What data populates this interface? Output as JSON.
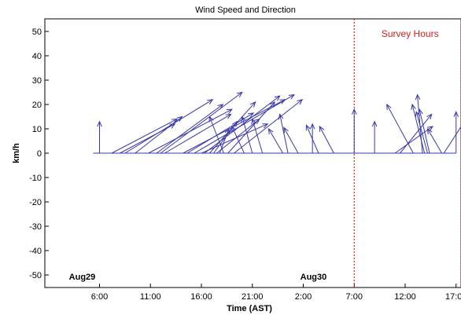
{
  "chart_data": {
    "type": "quiver",
    "title": "Wind Speed and Direction",
    "xlabel": "Time (AST)",
    "ylabel": "km/h",
    "ylim": [
      -55,
      55
    ],
    "yticks": [
      -50,
      -40,
      -30,
      -20,
      -10,
      0,
      10,
      20,
      30,
      40,
      50
    ],
    "xlim": [
      0,
      36
    ],
    "xticks": [
      {
        "hours": 6,
        "label": "6:00"
      },
      {
        "hours": 11,
        "label": "11:00"
      },
      {
        "hours": 16,
        "label": "16:00"
      },
      {
        "hours": 21,
        "label": "21:00"
      },
      {
        "hours": 26,
        "label": "2:00"
      },
      {
        "hours": 31,
        "label": "7:00"
      },
      {
        "hours": 36,
        "label": "12:00"
      },
      {
        "hours": 41,
        "label": "17:00"
      }
    ],
    "day_labels": [
      {
        "hours": 4.3,
        "label": "Aug29"
      },
      {
        "hours": 27,
        "label": "Aug30"
      }
    ],
    "annotation": {
      "label": "Survey Hours",
      "start_hours": 31,
      "end_hours": 41.5
    },
    "vectors": [
      {
        "t": 6.0,
        "u": 0.0,
        "v": 13.0
      },
      {
        "t": 7.2,
        "u": 6.4,
        "v": 14.0
      },
      {
        "t": 8.0,
        "u": 5.4,
        "v": 12.0
      },
      {
        "t": 8.5,
        "u": 8.6,
        "v": 22.0
      },
      {
        "t": 9.5,
        "u": 4.6,
        "v": 15.0
      },
      {
        "t": 10.8,
        "u": 8.2,
        "v": 18.0
      },
      {
        "t": 11.6,
        "u": 6.5,
        "v": 20.0
      },
      {
        "t": 12.0,
        "u": 8.0,
        "v": 25.0
      },
      {
        "t": 12.4,
        "u": 6.5,
        "v": 16.0
      },
      {
        "t": 14.2,
        "u": 10.0,
        "v": 22.0
      },
      {
        "t": 14.6,
        "u": 6.5,
        "v": 16.5
      },
      {
        "t": 15.3,
        "u": 9.8,
        "v": 24.0
      },
      {
        "t": 16.0,
        "u": 6.5,
        "v": 12.0
      },
      {
        "t": 16.3,
        "u": 7.4,
        "v": 23.5
      },
      {
        "t": 16.8,
        "u": 4.5,
        "v": 21.0
      },
      {
        "t": 17.2,
        "u": 2.3,
        "v": 13.0
      },
      {
        "t": 17.5,
        "u": 4.2,
        "v": 14.0
      },
      {
        "t": 17.8,
        "u": 0.9,
        "v": 10.0
      },
      {
        "t": 18.2,
        "u": -1.4,
        "v": 15.0
      },
      {
        "t": 18.6,
        "u": 4.6,
        "v": 21.0
      },
      {
        "t": 19.2,
        "u": 6.7,
        "v": 22.0
      },
      {
        "t": 20.2,
        "u": -1.2,
        "v": 11.0
      },
      {
        "t": 21.0,
        "u": -1.0,
        "v": 15.0
      },
      {
        "t": 22.0,
        "u": -1.0,
        "v": 14.0
      },
      {
        "t": 24.0,
        "u": -1.4,
        "v": 10.0
      },
      {
        "t": 24.5,
        "u": -0.8,
        "v": 16.0
      },
      {
        "t": 25.5,
        "u": -1.4,
        "v": 10.5
      },
      {
        "t": 26.9,
        "u": 0.0,
        "v": 12.0
      },
      {
        "t": 27.5,
        "u": -1.2,
        "v": 11.5
      },
      {
        "t": 29.0,
        "u": -1.4,
        "v": 11.0
      },
      {
        "t": 31.0,
        "u": 0.0,
        "v": 18.0
      },
      {
        "t": 33.0,
        "u": 0.0,
        "v": 13.0
      },
      {
        "t": 35.0,
        "u": 3.7,
        "v": 11.0
      },
      {
        "t": 35.5,
        "u": 3.1,
        "v": 16.0
      },
      {
        "t": 36.8,
        "u": -2.6,
        "v": 20.0
      },
      {
        "t": 37.7,
        "u": -0.5,
        "v": 24.0
      },
      {
        "t": 37.9,
        "u": -1.2,
        "v": 20.0
      },
      {
        "t": 38.2,
        "u": -1.1,
        "v": 17.0
      },
      {
        "t": 38.4,
        "u": -1.0,
        "v": 18.0
      },
      {
        "t": 39.6,
        "u": -1.4,
        "v": 10.0
      },
      {
        "t": 39.8,
        "u": 2.8,
        "v": 18.0
      },
      {
        "t": 41.0,
        "u": 0.0,
        "v": 17.0
      }
    ]
  }
}
